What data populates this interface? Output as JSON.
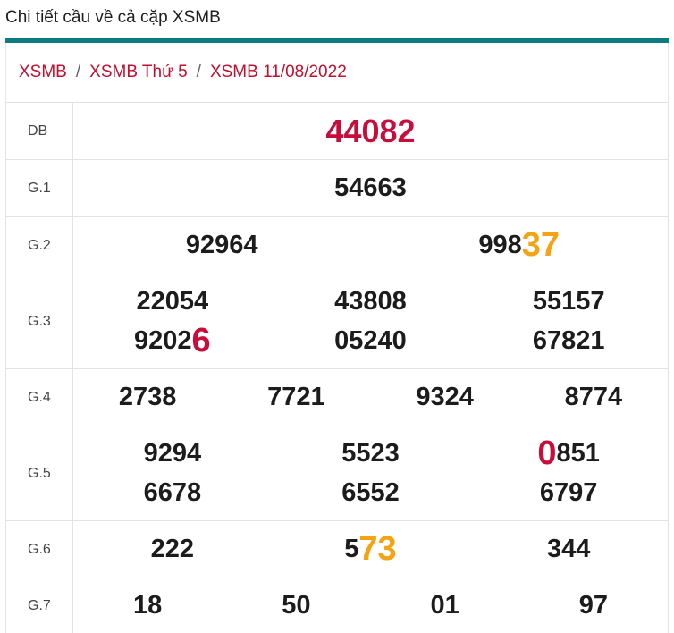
{
  "page_title": "Chi tiết cầu về cả cặp XSMB",
  "breadcrumb": [
    "XSMB",
    "XSMB Thứ 5",
    "XSMB 11/08/2022"
  ],
  "breadcrumb_separator": "/",
  "colors": {
    "teal_bar": "#0d7c80",
    "link_red": "#c0102f",
    "highlight_red": "#c70d3a",
    "highlight_orange": "#f4a312"
  },
  "prizes": {
    "db": {
      "label": "DB",
      "numbers": [
        "44082"
      ]
    },
    "g1": {
      "label": "G.1",
      "numbers": [
        "54663"
      ]
    },
    "g2": {
      "label": "G.2",
      "numbers": [
        "92964",
        "99837"
      ],
      "n1_base": "998",
      "n1_hl": "37"
    },
    "g3": {
      "label": "G.3",
      "numbers": [
        "22054",
        "43808",
        "55157",
        "92026",
        "05240",
        "67821"
      ],
      "n3_base": "9202",
      "n3_hl": "6"
    },
    "g4": {
      "label": "G.4",
      "numbers": [
        "2738",
        "7721",
        "9324",
        "8774"
      ]
    },
    "g5": {
      "label": "G.5",
      "numbers": [
        "9294",
        "5523",
        "0851",
        "6678",
        "6552",
        "6797"
      ],
      "n2_hl": "0",
      "n2_rest": "851"
    },
    "g6": {
      "label": "G.6",
      "numbers": [
        "222",
        "573",
        "344"
      ],
      "n1_base": "5",
      "n1_hl": "73"
    },
    "g7": {
      "label": "G.7",
      "numbers": [
        "18",
        "50",
        "01",
        "97"
      ]
    }
  }
}
